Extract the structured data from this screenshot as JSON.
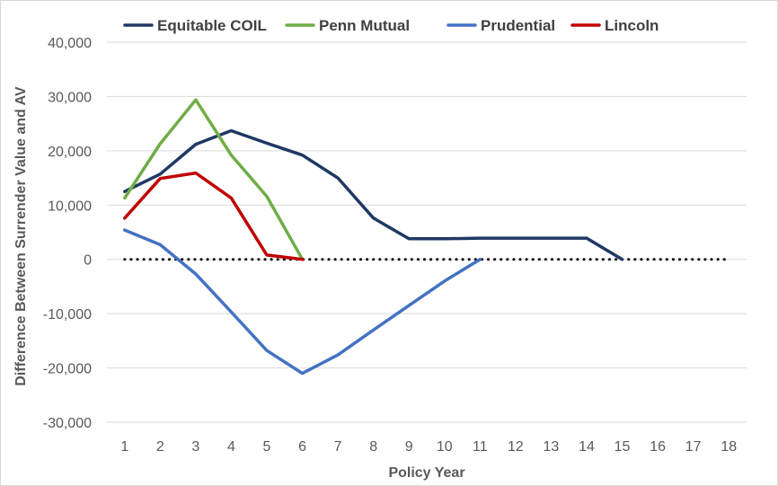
{
  "chart_data": {
    "type": "line",
    "title": "",
    "xlabel": "Policy Year",
    "ylabel": "Difference Between Surrender Value and AV",
    "x": [
      1,
      2,
      3,
      4,
      5,
      6,
      7,
      8,
      9,
      10,
      11,
      12,
      13,
      14,
      15,
      16,
      17,
      18
    ],
    "ylim": [
      -30000,
      40000
    ],
    "yticks": [
      -30000,
      -20000,
      -10000,
      0,
      10000,
      20000,
      30000,
      40000
    ],
    "ytick_labels": [
      "-30,000",
      "-20,000",
      "-10,000",
      "0",
      "10,000",
      "20,000",
      "30,000",
      "40,000"
    ],
    "grid": true,
    "legend_position": "top",
    "series": [
      {
        "name": "Equitable COIL",
        "color": "#1f3864",
        "x": [
          1,
          2,
          3,
          4,
          5,
          6,
          7,
          8,
          9,
          10,
          11,
          12,
          13,
          14,
          15
        ],
        "values": [
          12500,
          15700,
          21200,
          23700,
          21400,
          19200,
          15000,
          7600,
          3800,
          3800,
          3900,
          3900,
          3900,
          3900,
          0
        ]
      },
      {
        "name": "Penn Mutual",
        "color": "#70ad47",
        "x": [
          1,
          2,
          3,
          4,
          5,
          6
        ],
        "values": [
          11300,
          21300,
          29400,
          19200,
          11600,
          0
        ]
      },
      {
        "name": "Prudential",
        "color": "#4472c4",
        "x": [
          1,
          2,
          3,
          4,
          5,
          6,
          7,
          8,
          9,
          10,
          11
        ],
        "values": [
          5400,
          2700,
          -2700,
          -9700,
          -16800,
          -21000,
          -17600,
          -13000,
          -8500,
          -4000,
          0
        ]
      },
      {
        "name": "Lincoln",
        "color": "#c00000",
        "x": [
          1,
          2,
          3,
          4,
          5,
          6
        ],
        "values": [
          7600,
          14900,
          15900,
          11300,
          800,
          0
        ]
      }
    ],
    "reference_line": {
      "y": 0,
      "x": [
        1,
        18
      ],
      "style": "dotted",
      "color": "#000000"
    },
    "gridline_color": "#d9d9d9"
  }
}
